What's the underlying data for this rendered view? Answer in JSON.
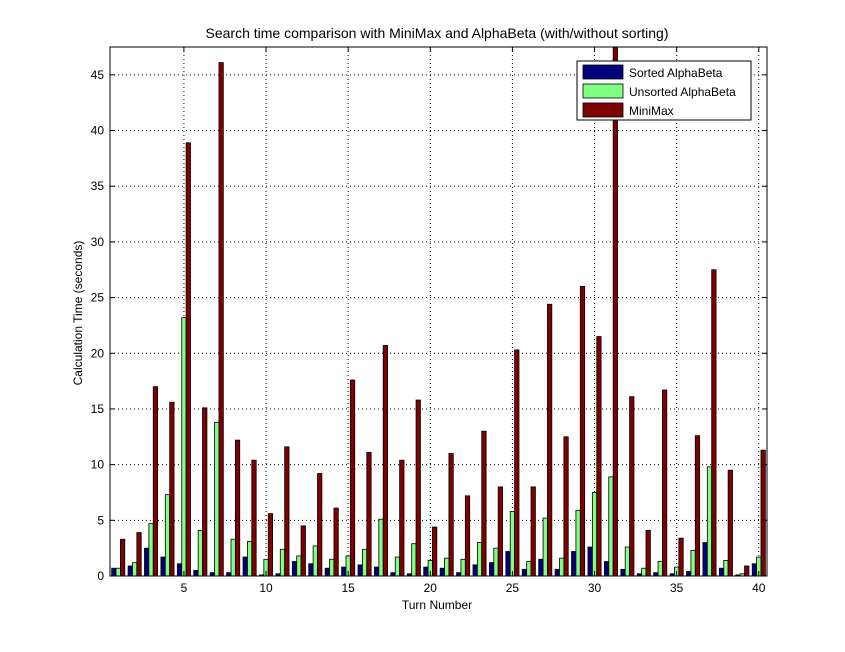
{
  "chart_data": {
    "type": "bar",
    "title": "Search time comparison with MiniMax and AlphaBeta (with/without sorting)",
    "xlabel": "Turn Number",
    "ylabel": "Calculation Time (seconds)",
    "xlim": [
      0.5,
      40.5
    ],
    "ylim": [
      0,
      47.5
    ],
    "xticks": [
      5,
      10,
      15,
      20,
      25,
      30,
      35,
      40
    ],
    "yticks": [
      0,
      5,
      10,
      15,
      20,
      25,
      30,
      35,
      40,
      45
    ],
    "grid": true,
    "legend_position": "top-right",
    "categories": [
      1,
      2,
      3,
      4,
      5,
      6,
      7,
      8,
      9,
      10,
      11,
      12,
      13,
      14,
      15,
      16,
      17,
      18,
      19,
      20,
      21,
      22,
      23,
      24,
      25,
      26,
      27,
      28,
      29,
      30,
      31,
      32,
      33,
      34,
      35,
      36,
      37,
      38,
      39,
      40
    ],
    "series": [
      {
        "name": "Sorted AlphaBeta",
        "color": "#00007f",
        "values": [
          0.7,
          0.9,
          2.5,
          1.7,
          1.1,
          0.5,
          0.3,
          0.3,
          1.7,
          0.1,
          0.2,
          1.3,
          1.1,
          0.7,
          0.8,
          1.0,
          0.8,
          0.3,
          0.2,
          0.8,
          0.7,
          0.3,
          1.0,
          1.2,
          2.2,
          0.6,
          1.5,
          0.6,
          2.2,
          2.6,
          1.3,
          0.6,
          0.2,
          0.3,
          0.2,
          0.4,
          3.0,
          0.7,
          0.1,
          1.1
        ]
      },
      {
        "name": "Unsorted AlphaBeta",
        "color": "#80ff80",
        "values": [
          0.7,
          1.2,
          4.7,
          7.3,
          23.2,
          4.1,
          13.8,
          3.3,
          3.1,
          1.5,
          2.4,
          1.8,
          2.7,
          1.5,
          1.8,
          2.4,
          5.1,
          1.7,
          2.9,
          1.4,
          1.6,
          1.5,
          3.0,
          2.5,
          5.8,
          1.3,
          5.2,
          1.6,
          5.9,
          7.5,
          8.9,
          2.6,
          0.7,
          1.3,
          0.8,
          2.3,
          9.8,
          1.4,
          0.2,
          1.7
        ]
      },
      {
        "name": "MiniMax",
        "color": "#7f0000",
        "values": [
          3.3,
          3.9,
          17.0,
          15.6,
          38.9,
          15.1,
          46.1,
          12.2,
          10.4,
          5.6,
          11.6,
          4.5,
          9.2,
          6.1,
          17.6,
          11.1,
          20.7,
          10.4,
          15.8,
          4.4,
          11.0,
          7.2,
          13.0,
          8.0,
          20.3,
          8.0,
          24.4,
          12.5,
          26.0,
          21.5,
          47.5,
          16.1,
          4.1,
          16.7,
          3.4,
          12.6,
          27.5,
          9.5,
          0.9,
          11.3
        ]
      }
    ]
  }
}
